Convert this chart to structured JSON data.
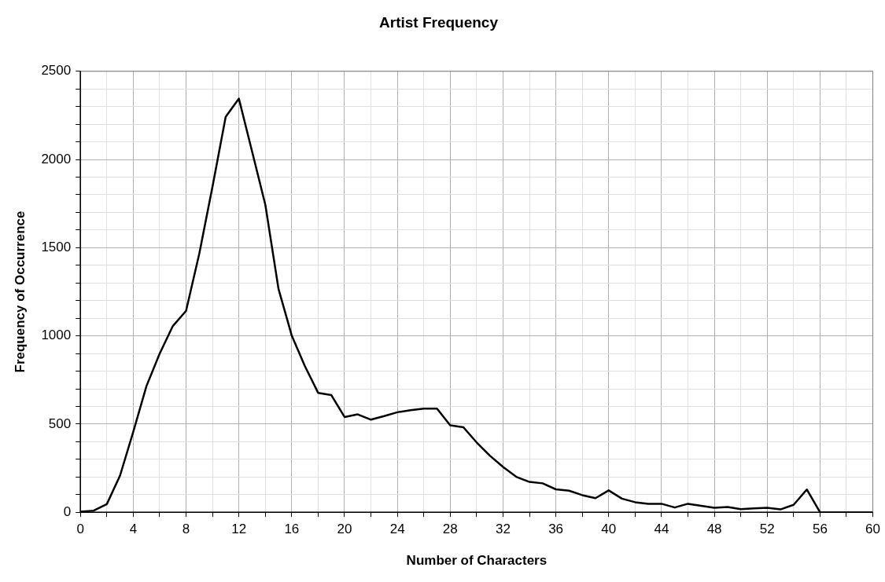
{
  "chart_data": {
    "type": "line",
    "title": "Artist Frequency",
    "xlabel": "Number of Characters",
    "ylabel": "Frequency of Occurrence",
    "x": [
      0,
      1,
      2,
      3,
      4,
      5,
      6,
      7,
      8,
      9,
      10,
      11,
      12,
      13,
      14,
      15,
      16,
      17,
      18,
      19,
      20,
      21,
      22,
      23,
      24,
      25,
      26,
      27,
      28,
      29,
      30,
      31,
      32,
      33,
      34,
      35,
      36,
      37,
      38,
      39,
      40,
      41,
      42,
      43,
      44,
      45,
      46,
      47,
      48,
      49,
      50,
      51,
      52,
      53,
      54,
      55,
      56,
      57,
      58,
      59,
      60
    ],
    "series": [
      {
        "color": "#000000",
        "values": [
          3,
          9,
          46,
          208,
          456,
          715,
          899,
          1056,
          1142,
          1466,
          1846,
          2242,
          2345,
          2045,
          1744,
          1266,
          1002,
          828,
          677,
          664,
          540,
          555,
          525,
          545,
          567,
          579,
          588,
          588,
          493,
          482,
          396,
          321,
          257,
          201,
          172,
          164,
          130,
          122,
          97,
          80,
          124,
          77,
          57,
          48,
          48,
          27,
          48,
          37,
          25,
          30,
          18,
          22,
          25,
          16,
          42,
          129,
          0,
          0,
          0,
          0,
          0
        ]
      }
    ],
    "xlim": [
      0,
      60
    ],
    "xticks": [
      0,
      {
        "value": 2,
        "label": null
      },
      4,
      {
        "value": 6,
        "label": null
      },
      8,
      {
        "value": 10,
        "label": null
      },
      12,
      {
        "value": 14,
        "label": null
      },
      16,
      {
        "value": 18,
        "label": null
      },
      20,
      {
        "value": 22,
        "label": null
      },
      24,
      {
        "value": 26,
        "label": null
      },
      28,
      {
        "value": 30,
        "label": null
      },
      32,
      {
        "value": 34,
        "label": null
      },
      36,
      {
        "value": 38,
        "label": null
      },
      40,
      {
        "value": 42,
        "label": null
      },
      44,
      {
        "value": 46,
        "label": null
      },
      48,
      {
        "value": 50,
        "label": null
      },
      52,
      {
        "value": 54,
        "label": null
      },
      56,
      {
        "value": 58,
        "label": null
      },
      60
    ],
    "ylim": [
      0,
      2500
    ],
    "yticks": [
      0,
      {
        "value": 100,
        "label": null
      },
      {
        "value": 200,
        "label": null
      },
      {
        "value": 300,
        "label": null
      },
      {
        "value": 400,
        "label": null
      },
      500,
      {
        "value": 600,
        "label": null
      },
      {
        "value": 700,
        "label": null
      },
      {
        "value": 800,
        "label": null
      },
      {
        "value": 900,
        "label": null
      },
      1000,
      {
        "value": 1100,
        "label": null
      },
      {
        "value": 1200,
        "label": null
      },
      {
        "value": 1300,
        "label": null
      },
      {
        "value": 1400,
        "label": null
      },
      1500,
      {
        "value": 1600,
        "label": null
      },
      {
        "value": 1700,
        "label": null
      },
      {
        "value": 1800,
        "label": null
      },
      {
        "value": 1900,
        "label": null
      },
      2000,
      {
        "value": 2100,
        "label": null
      },
      {
        "value": 2200,
        "label": null
      },
      {
        "value": 2300,
        "label": null
      },
      {
        "value": 2400,
        "label": null
      },
      2500
    ],
    "grid": true,
    "legend": false,
    "marker": "none",
    "line_style": "solid"
  }
}
